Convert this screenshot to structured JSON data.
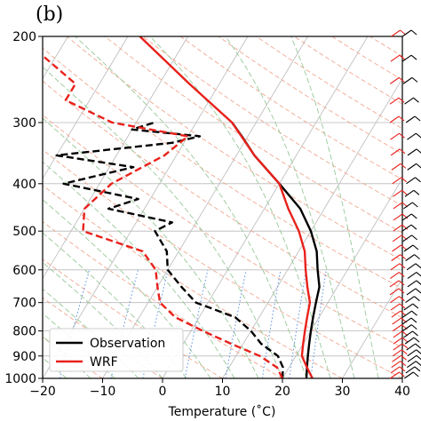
{
  "panel_label": "(b)",
  "chart_data": {
    "type": "line",
    "subtype": "skew-T log-P diagram",
    "xlabel": "Temperature (˚C)",
    "ylabel": "",
    "x_ticks": [
      -20,
      -10,
      0,
      10,
      20,
      30,
      40
    ],
    "y_ticks": [
      200,
      300,
      400,
      500,
      600,
      700,
      800,
      900,
      1000
    ],
    "xlim": [
      -20,
      40
    ],
    "ylim": [
      1000,
      200
    ],
    "y_scale": "log",
    "skew": true,
    "background_lines": [
      "isotherms",
      "dry adiabats",
      "moist adiabats",
      "mixing ratio lines"
    ],
    "legend_position": "bottom-left",
    "series": [
      {
        "name": "Observation",
        "color": "#000000",
        "points": [
          {
            "label": "temperature",
            "style": "solid",
            "p": [
              1000,
              950,
              900,
              850,
              800,
              750,
              700,
              650,
              600,
              550,
              500,
              450,
              400,
              350,
              320,
              300
            ],
            "t": [
              24,
              23,
              22,
              21,
              20,
              19,
              18,
              17,
              15,
              13,
              10,
              6,
              0,
              -7,
              -11,
              -14
            ]
          },
          {
            "label": "dewpoint",
            "style": "dashed",
            "p": [
              1000,
              950,
              900,
              850,
              800,
              750,
              700,
              650,
              600,
              550,
              500,
              480,
              450,
              430,
              400,
              370,
              350,
              330,
              320,
              310,
              300
            ],
            "t": [
              20,
              19,
              17,
              13,
              10,
              6,
              -2,
              -6,
              -10,
              -12,
              -16,
              -14,
              -26,
              -22,
              -36,
              -26,
              -40,
              -22,
              -18,
              -30,
              -27
            ]
          }
        ]
      },
      {
        "name": "WRF",
        "color": "#e8211b",
        "points": [
          {
            "label": "temperature",
            "style": "solid",
            "p": [
              1000,
              950,
              900,
              850,
              800,
              750,
              700,
              650,
              600,
              550,
              500,
              450,
              400,
              350,
              300,
              250,
              200
            ],
            "t": [
              25,
              23,
              21,
              20,
              19,
              18,
              17,
              15,
              13,
              11,
              8,
              4,
              0,
              -7,
              -14,
              -25,
              -38
            ]
          },
          {
            "label": "dewpoint",
            "style": "dashed",
            "p": [
              1000,
              950,
              900,
              850,
              800,
              750,
              700,
              650,
              600,
              550,
              500,
              450,
              400,
              350,
              320,
              300,
              270,
              250,
              220,
              200
            ],
            "t": [
              20,
              18,
              14,
              8,
              2,
              -4,
              -8,
              -10,
              -12,
              -16,
              -28,
              -30,
              -28,
              -22,
              -20,
              -34,
              -44,
              -44,
              -52,
              -56
            ]
          }
        ]
      }
    ],
    "wind_barbs": [
      {
        "name": "WRF",
        "color": "#e8211b"
      },
      {
        "name": "Observation",
        "color": "#000000"
      }
    ]
  }
}
